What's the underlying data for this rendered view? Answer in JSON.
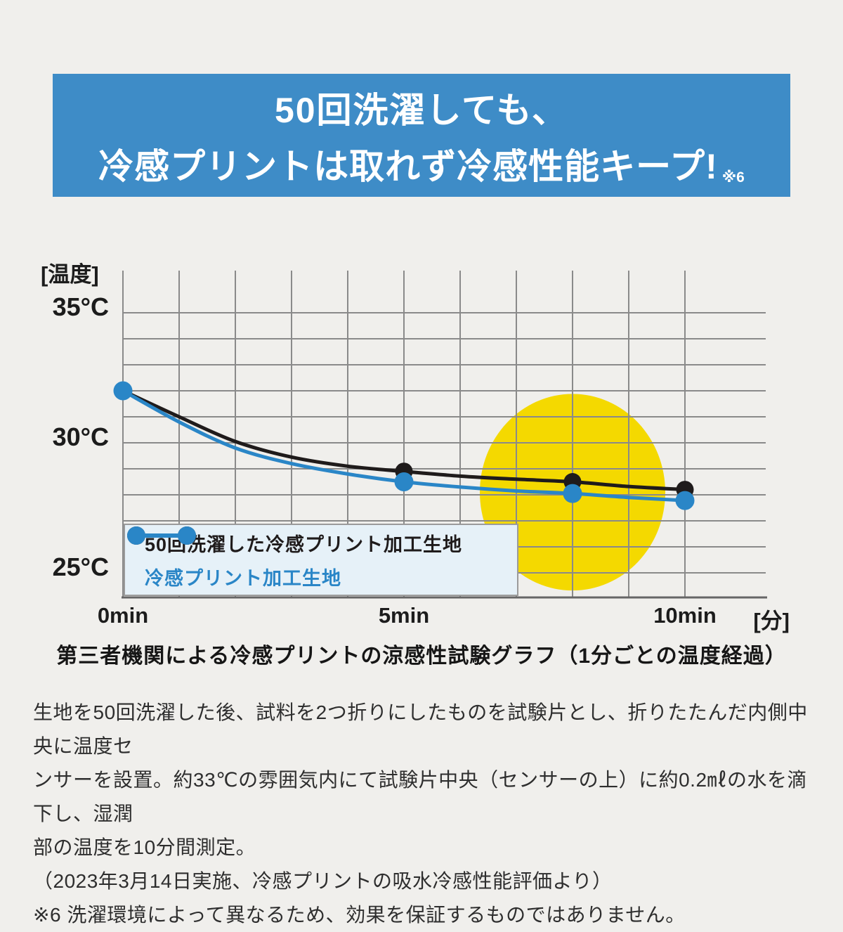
{
  "header": {
    "line1": "50回洗濯しても、",
    "line2": "冷感プリントは取れず冷感性能キープ!",
    "footnote_ref": "※6"
  },
  "chart": {
    "y_axis_title": "[温度]",
    "y_ticks": [
      "35°C",
      "30°C",
      "25°C"
    ],
    "y_tick_values": [
      35,
      30,
      25
    ],
    "x_ticks": [
      "0min",
      "5min",
      "10min"
    ],
    "x_tick_values": [
      0,
      5,
      10
    ],
    "x_axis_unit": "[分]",
    "legend": [
      {
        "label": "50回洗濯した冷感プリント加工生地",
        "color": "#1f1b1b"
      },
      {
        "label": "冷感プリント加工生地",
        "color": "#2a86c7"
      }
    ]
  },
  "chart_data": {
    "type": "line",
    "title": "第三者機関による冷感プリントの涼感性試験グラフ（1分ごとの温度経過）",
    "xlabel": "[分] (minutes)",
    "ylabel": "[温度] (°C)",
    "x_minutes": [
      0,
      1,
      2,
      3,
      4,
      5,
      6,
      7,
      8,
      9,
      10
    ],
    "series": [
      {
        "name": "50回洗濯した冷感プリント加工生地",
        "color": "#1f1b1b",
        "values": [
          32.0,
          31.0,
          30.05,
          29.45,
          29.1,
          28.9,
          28.72,
          28.6,
          28.5,
          28.32,
          28.2
        ],
        "marker_minutes": [
          0,
          5,
          8,
          10
        ]
      },
      {
        "name": "冷感プリント加工生地",
        "color": "#2a86c7",
        "values": [
          32.0,
          30.8,
          29.8,
          29.2,
          28.8,
          28.5,
          28.3,
          28.15,
          28.05,
          27.9,
          27.78
        ],
        "marker_minutes": [
          0,
          5,
          8,
          10
        ]
      }
    ],
    "ylim": [
      24,
      36
    ],
    "xlim_minutes": [
      0,
      10
    ],
    "y_gridline_step_c": 1,
    "x_gridline_step_min": 1,
    "grid": true,
    "legend_position": "bottom-left-inside",
    "highlight_ellipse": {
      "center_min": 8,
      "center_temp": 28.1,
      "rx_min": 1.65,
      "ry_temp": 3.78,
      "color": "#f4d900"
    }
  },
  "caption": "第三者機関による冷感プリントの涼感性試験グラフ（1分ごとの温度経過）",
  "notes": {
    "lines": [
      "生地を50回洗濯した後、試料を2つ折りにしたものを試験片とし、折りたたんだ内側中央に温度セ",
      "ンサーを設置。約33℃の雰囲気内にて試験片中央（センサーの上）に約0.2㎖の水を滴下し、湿潤",
      "部の温度を10分間測定。",
      "（2023年3月14日実施、冷感プリントの吸水冷感性能評価より）",
      "※6 洗濯環境によって異なるため、効果を保証するものではありません。"
    ]
  },
  "colors": {
    "banner_background": "#3e8cc7",
    "banner_text": "#ffffff",
    "page_background": "#f0efec",
    "grid_line": "#8a8a8a",
    "axis_line": "#666666",
    "highlight_yellow": "#f4d900",
    "series_washed": "#1f1b1b",
    "series_original": "#2a86c7",
    "legend_background": "#e6f1f8"
  }
}
